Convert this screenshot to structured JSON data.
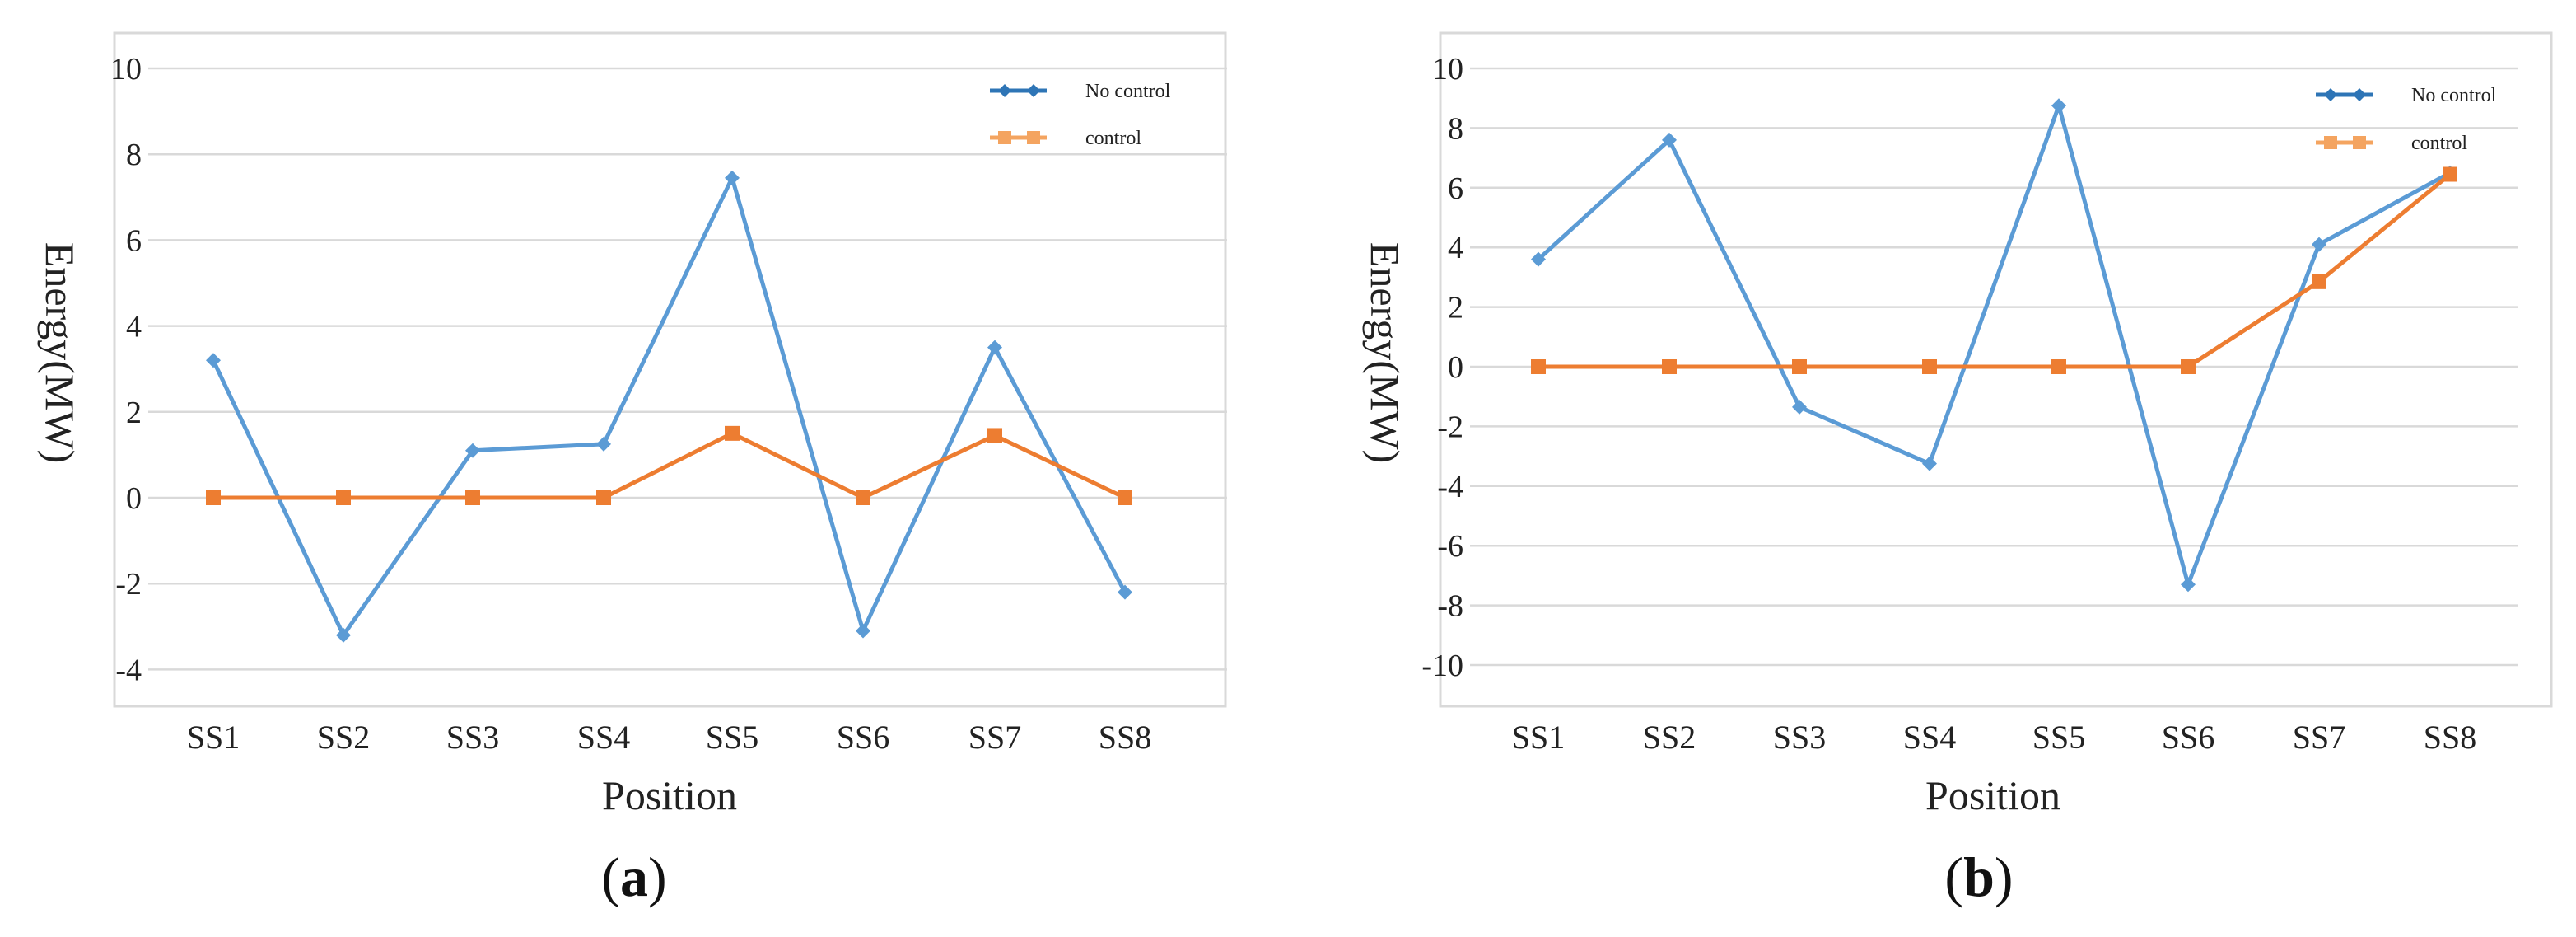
{
  "chart_data": [
    {
      "type": "line",
      "panel_label": "(a)",
      "panel_letter": "a",
      "xlabel": "Position",
      "ylabel": "Energy(MW)",
      "categories": [
        "SS1",
        "SS2",
        "SS3",
        "SS4",
        "SS5",
        "SS6",
        "SS7",
        "SS8"
      ],
      "ylim": [
        -4,
        10
      ],
      "yticks": [
        10,
        8,
        6,
        4,
        2,
        0,
        -2,
        -4
      ],
      "grid": true,
      "legend_position": "top-right",
      "series": [
        {
          "name": "No control",
          "color": "#5B9BD5",
          "legend_color": "#2E75B6",
          "marker": "diamond",
          "values": [
            3.2,
            -3.2,
            1.1,
            1.25,
            7.45,
            -3.1,
            3.5,
            -2.2
          ]
        },
        {
          "name": "control",
          "color": "#ED7D31",
          "legend_color": "#F4A460",
          "marker": "square",
          "values": [
            0,
            0,
            0,
            0,
            1.5,
            0,
            1.45,
            0
          ]
        }
      ]
    },
    {
      "type": "line",
      "panel_label": "(b)",
      "panel_letter": "b",
      "xlabel": "Position",
      "ylabel": "Energy(MW)",
      "categories": [
        "SS1",
        "SS2",
        "SS3",
        "SS4",
        "SS5",
        "SS6",
        "SS7",
        "SS8"
      ],
      "ylim": [
        -11,
        10
      ],
      "yticks": [
        10,
        8,
        6,
        4,
        2,
        0,
        -2,
        -4,
        -6,
        -8,
        -10
      ],
      "grid": true,
      "legend_position": "top-right",
      "series": [
        {
          "name": "No control",
          "color": "#5B9BD5",
          "legend_color": "#2E75B6",
          "marker": "diamond",
          "values": [
            3.6,
            7.6,
            -1.35,
            -3.25,
            8.75,
            -7.3,
            4.1,
            6.5
          ]
        },
        {
          "name": "control",
          "color": "#ED7D31",
          "legend_color": "#F4A460",
          "marker": "square",
          "values": [
            0,
            0,
            0,
            0,
            0,
            0,
            2.85,
            6.45
          ]
        }
      ]
    }
  ]
}
